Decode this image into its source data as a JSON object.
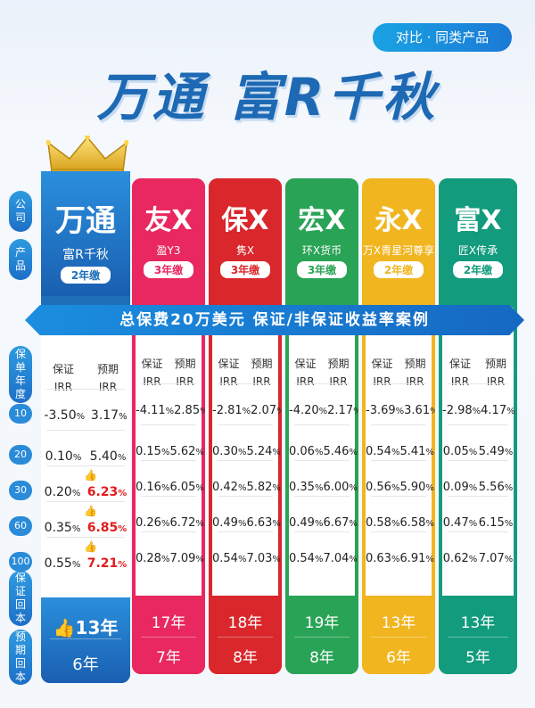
{
  "tag": "对比 · 同类产品",
  "title": "万通 富R千秋",
  "banner": "总保费20万美元  保证/非保证收益率案例",
  "side_labels": {
    "company": [
      "公",
      "司"
    ],
    "product": [
      "产",
      "品"
    ],
    "policy_year": [
      "保",
      "单",
      "年",
      "度"
    ],
    "guaranteed_payback": [
      "保",
      "证",
      "回",
      "本"
    ],
    "expected_payback": [
      "预",
      "期",
      "回",
      "本"
    ]
  },
  "years": [
    "10",
    "20",
    "30",
    "60",
    "100"
  ],
  "columns": [
    {
      "name": "万通",
      "product": "富R千秋",
      "term": "2年缴",
      "color": "#1d6fb8",
      "col_g": "保证",
      "col_e": "预期",
      "irr": "IRR",
      "rows": [
        [
          "-3.50",
          "3.17"
        ],
        [
          "0.10",
          "5.40"
        ],
        [
          "0.20",
          "6.23"
        ],
        [
          "0.35",
          "6.85"
        ],
        [
          "0.55",
          "7.21"
        ]
      ],
      "g_payback": "13年",
      "e_payback": "6年"
    },
    {
      "name": "友X",
      "product": "盈Y3",
      "term": "3年缴",
      "color": "#e8285f",
      "col_g": "保证",
      "col_e": "预期",
      "irr": "IRR",
      "rows": [
        [
          "-4.11",
          "2.85"
        ],
        [
          "0.15",
          "5.62"
        ],
        [
          "0.16",
          "6.05"
        ],
        [
          "0.26",
          "6.72"
        ],
        [
          "0.28",
          "7.09"
        ]
      ],
      "g_payback": "17年",
      "e_payback": "7年"
    },
    {
      "name": "保X",
      "product": "隽X",
      "term": "3年缴",
      "color": "#d9272c",
      "col_g": "保证",
      "col_e": "预期",
      "irr": "IRR",
      "rows": [
        [
          "-2.81",
          "2.07"
        ],
        [
          "0.30",
          "5.24"
        ],
        [
          "0.42",
          "5.82"
        ],
        [
          "0.49",
          "6.63"
        ],
        [
          "0.54",
          "7.03"
        ]
      ],
      "g_payback": "18年",
      "e_payback": "8年"
    },
    {
      "name": "宏X",
      "product": "环X货币",
      "term": "3年缴",
      "color": "#29a356",
      "col_g": "保证",
      "col_e": "预期",
      "irr": "IRR",
      "rows": [
        [
          "-4.20",
          "2.17"
        ],
        [
          "0.06",
          "5.46"
        ],
        [
          "0.35",
          "6.00"
        ],
        [
          "0.49",
          "6.67"
        ],
        [
          "0.54",
          "7.04"
        ]
      ],
      "g_payback": "19年",
      "e_payback": "8年"
    },
    {
      "name": "永X",
      "product": "万X青星河尊享",
      "term": "2年缴",
      "color": "#f1b520",
      "col_g": "保证",
      "col_e": "预期",
      "irr": "IRR",
      "rows": [
        [
          "-3.69",
          "3.61"
        ],
        [
          "0.54",
          "5.41"
        ],
        [
          "0.56",
          "5.90"
        ],
        [
          "0.58",
          "6.58"
        ],
        [
          "0.63",
          "6.91"
        ]
      ],
      "g_payback": "13年",
      "e_payback": "6年"
    },
    {
      "name": "富X",
      "product": "匠X传承",
      "term": "2年缴",
      "color": "#139b7e",
      "col_g": "保证",
      "col_e": "预期",
      "irr": "IRR",
      "rows": [
        [
          "-2.98",
          "4.17"
        ],
        [
          "0.05",
          "5.49"
        ],
        [
          "0.09",
          "5.56"
        ],
        [
          "0.47",
          "6.15"
        ],
        [
          "0.62",
          "7.07"
        ]
      ],
      "g_payback": "13年",
      "e_payback": "5年"
    }
  ],
  "percent_sign": "%"
}
